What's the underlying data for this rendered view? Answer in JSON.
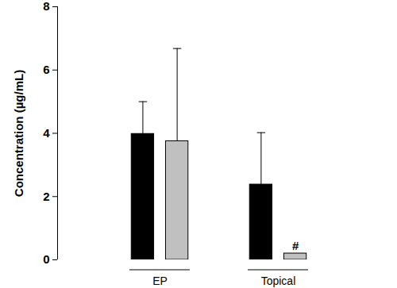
{
  "chart_data": {
    "type": "bar",
    "y_label": "Concentration (µg/mL)",
    "categories": [
      "EP",
      "Topical"
    ],
    "series": [
      {
        "color": "#000000",
        "values": [
          3.98,
          2.38
        ],
        "errors": [
          1.02,
          1.64
        ]
      },
      {
        "color": "#c0c0c0",
        "values": [
          3.75,
          0.2
        ],
        "errors": [
          2.93,
          null
        ],
        "annotations": [
          null,
          "#"
        ]
      }
    ],
    "ylim": [
      0,
      8
    ],
    "yticks": [
      0,
      2,
      4,
      6,
      8
    ],
    "grid": false
  }
}
